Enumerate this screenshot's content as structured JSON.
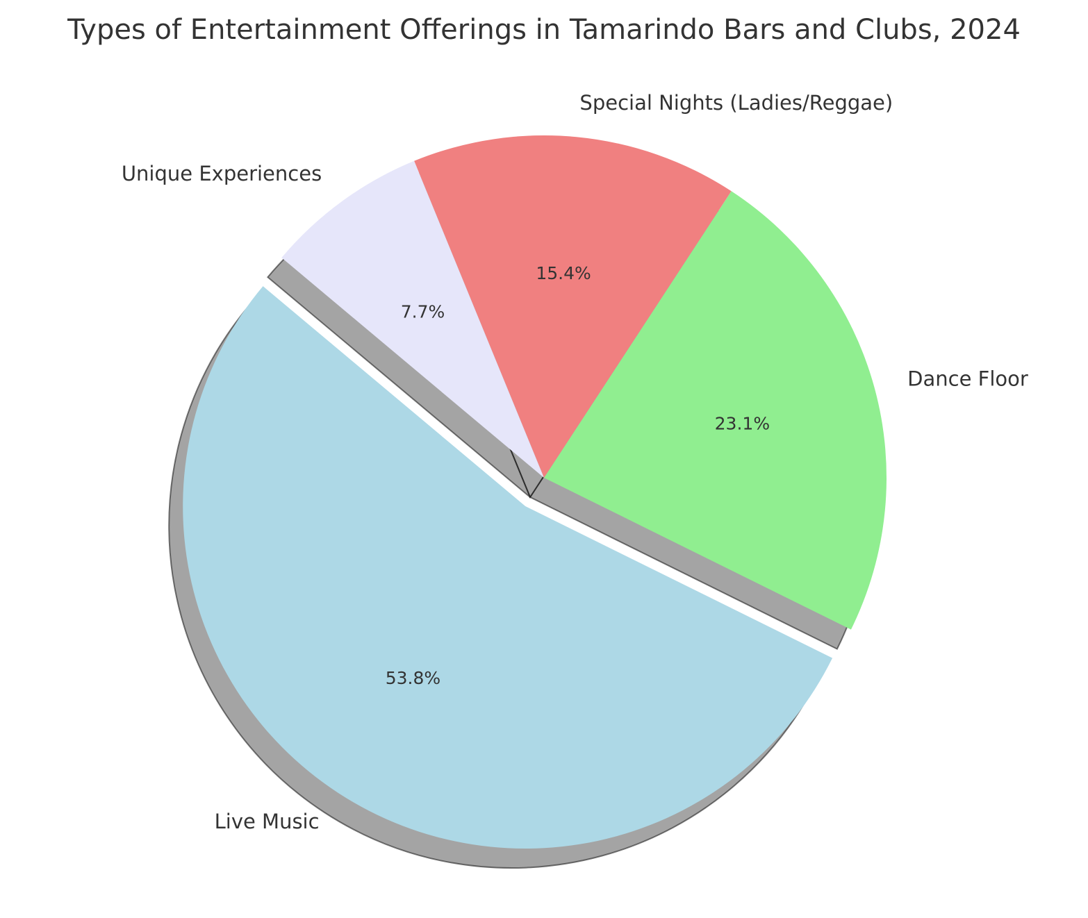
{
  "chart_data": {
    "type": "pie",
    "title": "Types of Entertainment Offerings in Tamarindo Bars and Clubs, 2024",
    "start_angle_deg": 140,
    "direction": "counterclockwise",
    "shadow": true,
    "slices": [
      {
        "label": "Live Music",
        "value": 53.8,
        "pct_label": "53.8%",
        "color": "#ADD8E6",
        "exploded": true
      },
      {
        "label": "Dance Floor",
        "value": 23.1,
        "pct_label": "23.1%",
        "color": "#90EE90",
        "exploded": false
      },
      {
        "label": "Special Nights (Ladies/Reggae)",
        "value": 15.4,
        "pct_label": "15.4%",
        "color": "#F08080",
        "exploded": false
      },
      {
        "label": "Unique Experiences",
        "value": 7.7,
        "pct_label": "7.7%",
        "color": "#E6E6FA",
        "exploded": false
      }
    ]
  }
}
